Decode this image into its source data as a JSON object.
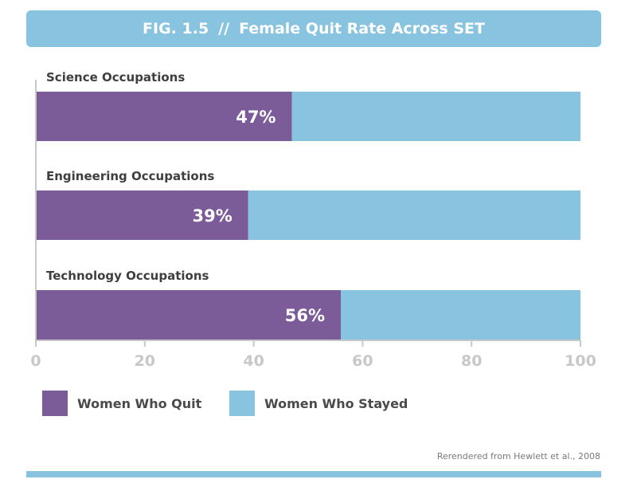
{
  "header": {
    "fig_number": "FIG. 1.5",
    "separator": "//",
    "title": "Female Quit Rate Across SET"
  },
  "chart_data": {
    "type": "bar",
    "orientation": "horizontal",
    "stacked": true,
    "title": "FIG. 1.5 // Female Quit Rate Across SET",
    "categories": [
      "Science Occupations",
      "Engineering Occupations",
      "Technology Occupations"
    ],
    "series": [
      {
        "name": "Women Who Quit",
        "values": [
          47,
          39,
          56
        ],
        "color": "#7b5b98"
      },
      {
        "name": "Women Who Stayed",
        "values": [
          53,
          61,
          44
        ],
        "color": "#88c3df"
      }
    ],
    "data_labels": [
      "47%",
      "39%",
      "56%"
    ],
    "xlim": [
      0,
      100
    ],
    "xticks": [
      0,
      20,
      40,
      60,
      80,
      100
    ],
    "grid": false,
    "legend_position": "bottom-left"
  },
  "legend": {
    "quit_label": "Women Who Quit",
    "stayed_label": "Women Who Stayed",
    "quit_color": "#7b5b98",
    "stayed_color": "#88c3df"
  },
  "credit": "Rerendered from Hewlett et al., 2008"
}
